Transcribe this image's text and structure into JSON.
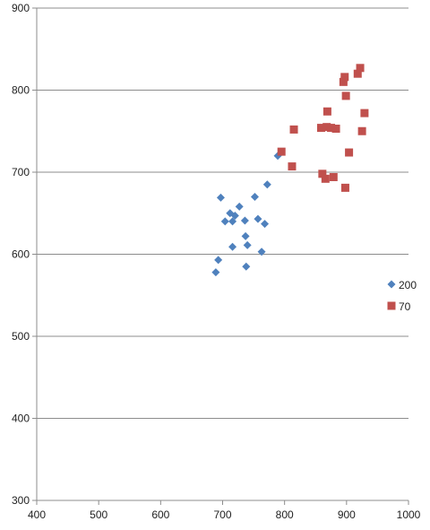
{
  "chart_data": {
    "type": "scatter",
    "title": "",
    "xlabel": "",
    "ylabel": "",
    "xlim": [
      400,
      1000
    ],
    "ylim": [
      300,
      900
    ],
    "x_ticks": [
      400,
      500,
      600,
      700,
      800,
      900,
      1000
    ],
    "y_ticks": [
      300,
      400,
      500,
      600,
      700,
      800,
      900
    ],
    "grid": "horizontal major gridlines",
    "legend_position": "right",
    "series": [
      {
        "name": "200",
        "marker": "diamond",
        "color": "#4f81bd",
        "points": [
          [
            697,
            669
          ],
          [
            704,
            640
          ],
          [
            712,
            650
          ],
          [
            716,
            640
          ],
          [
            720,
            647
          ],
          [
            727,
            658
          ],
          [
            736,
            641
          ],
          [
            737,
            622
          ],
          [
            740,
            611
          ],
          [
            738,
            585
          ],
          [
            716,
            609
          ],
          [
            693,
            593
          ],
          [
            689,
            578
          ],
          [
            752,
            670
          ],
          [
            757,
            643
          ],
          [
            763,
            603
          ],
          [
            768,
            637
          ],
          [
            772,
            685
          ],
          [
            789,
            720
          ]
        ]
      },
      {
        "name": "70",
        "marker": "square",
        "color": "#c0504d",
        "points": [
          [
            795,
            725
          ],
          [
            812,
            707
          ],
          [
            815,
            752
          ],
          [
            859,
            754
          ],
          [
            861,
            698
          ],
          [
            866,
            692
          ],
          [
            868,
            755
          ],
          [
            869,
            774
          ],
          [
            875,
            754
          ],
          [
            879,
            694
          ],
          [
            883,
            753
          ],
          [
            895,
            810
          ],
          [
            897,
            816
          ],
          [
            898,
            681
          ],
          [
            899,
            793
          ],
          [
            904,
            724
          ],
          [
            918,
            820
          ],
          [
            922,
            827
          ],
          [
            925,
            750
          ],
          [
            929,
            772
          ]
        ]
      }
    ]
  }
}
